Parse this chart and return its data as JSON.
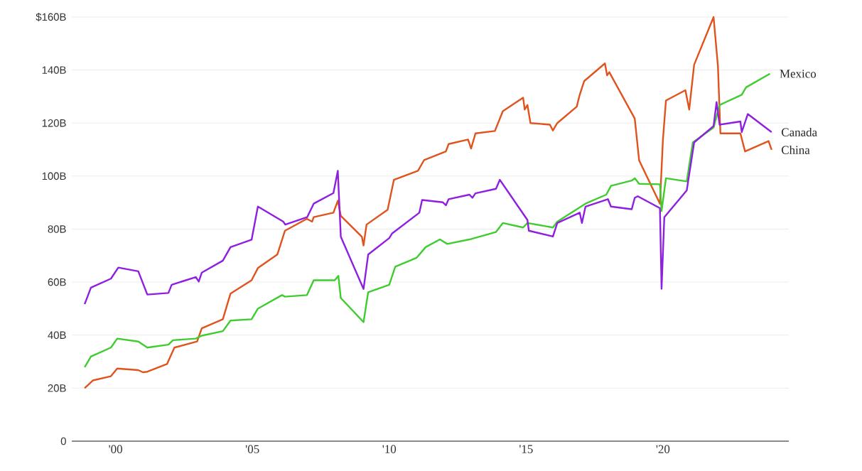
{
  "chart_data": {
    "type": "line",
    "xlim": [
      1998.4,
      2024.6
    ],
    "ylim": [
      0,
      160
    ],
    "xticks": [
      {
        "value": 2000,
        "label": "'00"
      },
      {
        "value": 2005,
        "label": "'05"
      },
      {
        "value": 2010,
        "label": "'10"
      },
      {
        "value": 2015,
        "label": "'15"
      },
      {
        "value": 2020,
        "label": "'20"
      }
    ],
    "yticks": [
      0,
      {
        "value": 20,
        "label": "20B"
      },
      {
        "value": 40,
        "label": "40B"
      },
      {
        "value": 60,
        "label": "60B"
      },
      {
        "value": 80,
        "label": "80B"
      },
      {
        "value": 100,
        "label": "100B"
      },
      {
        "value": 120,
        "label": "120B"
      },
      {
        "value": 140,
        "label": "140B"
      },
      {
        "value": 160,
        "label": "$160B"
      }
    ],
    "grid": "y",
    "legend": false,
    "marker": "none",
    "line_style": "solid",
    "series": [
      {
        "name": "China",
        "color": "#e0531c",
        "x": [
          1998.87,
          1999.17,
          1999.83,
          2000.06,
          2000.83,
          2001.0,
          2001.16,
          2001.88,
          2002.15,
          2002.98,
          2003.15,
          2003.92,
          2004.2,
          2004.97,
          2005.2,
          2005.91,
          2006.19,
          2006.99,
          2007.18,
          2007.24,
          2007.96,
          2008.12,
          2008.23,
          2009.0,
          2009.06,
          2009.17,
          2009.94,
          2010.17,
          2011.05,
          2011.27,
          2011.94,
          2012.07,
          2012.17,
          2012.88,
          2012.99,
          2013.15,
          2013.86,
          2014.15,
          2014.89,
          2014.95,
          2015.05,
          2015.16,
          2015.87,
          2015.98,
          2016.14,
          2016.85,
          2016.96,
          2017.12,
          2017.88,
          2017.96,
          2018.04,
          2018.97,
          2019.13,
          2019.89,
          2020.0,
          2020.11,
          2020.82,
          2020.96,
          2021.14,
          2021.85,
          2022.01,
          2022.1,
          2022.83,
          2023.0,
          2023.86,
          2023.97
        ],
        "values": [
          20,
          22.9,
          24.5,
          27.4,
          26.8,
          26,
          26.2,
          29.1,
          35.3,
          37.6,
          42.6,
          46,
          55.7,
          60.7,
          65.3,
          70.4,
          79.4,
          83.9,
          82.8,
          84.5,
          86.2,
          90.7,
          85,
          77.1,
          73.8,
          81.7,
          87.3,
          98.6,
          102,
          106,
          108.8,
          109.3,
          112.1,
          113.8,
          110.4,
          116.1,
          117,
          124.5,
          129.6,
          125.1,
          126.8,
          120,
          119.4,
          117.2,
          120,
          126.2,
          130.7,
          135.8,
          142.5,
          138,
          139.2,
          121.7,
          105.9,
          89.6,
          113.8,
          128.5,
          132.4,
          125.1,
          142,
          160,
          141.4,
          116.1,
          116.1,
          109.3,
          113.2,
          109.9
        ]
      },
      {
        "name": "Mexico",
        "color": "#3fcc2f",
        "x": [
          1998.87,
          1999.1,
          1999.83,
          2000.06,
          2000.83,
          2001.16,
          2001.93,
          2002.1,
          2002.93,
          2003.15,
          2003.92,
          2004.2,
          2004.97,
          2005.2,
          2006.08,
          2006.19,
          2006.99,
          2007.24,
          2008.01,
          2008.14,
          2008.23,
          2009.06,
          2009.23,
          2010.0,
          2010.22,
          2011.0,
          2011.33,
          2011.85,
          2012.12,
          2012.93,
          2013.9,
          2014.15,
          2014.89,
          2015.05,
          2015.98,
          2016.14,
          2017.17,
          2017.93,
          2018.1,
          2018.86,
          2018.97,
          2019.13,
          2019.89,
          2019.95,
          2020.11,
          2020.87,
          2021.09,
          2021.85,
          2022.07,
          2022.88,
          2023.04,
          2023.91
        ],
        "values": [
          27.9,
          31.9,
          35.3,
          38.7,
          37.6,
          35.3,
          36.4,
          38.1,
          38.7,
          39.8,
          41.5,
          45.5,
          46,
          50,
          55.1,
          54.5,
          55.1,
          60.7,
          60.7,
          62.4,
          54,
          44.9,
          56.2,
          59,
          65.8,
          69.2,
          73.2,
          76.1,
          74.4,
          76.1,
          78.9,
          82.3,
          80.6,
          82.3,
          80.6,
          82.8,
          89.6,
          93,
          96.3,
          98.3,
          99.2,
          97.1,
          96.9,
          86.8,
          99.2,
          98,
          112.7,
          118.3,
          126.8,
          130.7,
          133.5,
          138.6
        ]
      },
      {
        "name": "Canada",
        "color": "#8f1fe0",
        "x": [
          1998.87,
          1999.1,
          1999.83,
          2000.1,
          2000.83,
          2001.16,
          2001.93,
          2002.05,
          2002.93,
          2003.04,
          2003.15,
          2003.92,
          2004.2,
          2004.97,
          2005.2,
          2006.13,
          2006.2,
          2007.0,
          2007.24,
          2007.96,
          2008.12,
          2008.23,
          2009.06,
          2009.23,
          2010.0,
          2010.1,
          2011.1,
          2011.2,
          2011.96,
          2012.07,
          2012.17,
          2012.93,
          2013.04,
          2013.15,
          2013.9,
          2014.04,
          2015.05,
          2015.1,
          2015.98,
          2016.14,
          2016.96,
          2017.04,
          2017.17,
          2017.99,
          2018.1,
          2018.86,
          2018.97,
          2019.08,
          2019.89,
          2019.95,
          2020.05,
          2020.87,
          2021.14,
          2021.85,
          2021.96,
          2022.07,
          2022.83,
          2022.88,
          2023.1,
          2023.97
        ],
        "values": [
          51.7,
          57.9,
          61.3,
          65.5,
          64.1,
          55.3,
          55.9,
          59,
          61.9,
          60.2,
          63.6,
          68.1,
          73.2,
          76,
          88.5,
          82.8,
          81.7,
          84.5,
          89.6,
          93.6,
          102,
          77.1,
          57.4,
          70.4,
          76.6,
          78.3,
          86.2,
          91,
          90.1,
          89,
          91.3,
          93,
          91.8,
          93.5,
          95.2,
          98.6,
          83.4,
          79.4,
          77.2,
          82.3,
          86.2,
          82.3,
          88.5,
          91.3,
          88.5,
          87.5,
          91.8,
          92.4,
          87.9,
          57.5,
          84.5,
          94.6,
          112.7,
          118.9,
          127.9,
          119.4,
          120.6,
          116.6,
          123.4,
          116.6
        ]
      }
    ]
  }
}
